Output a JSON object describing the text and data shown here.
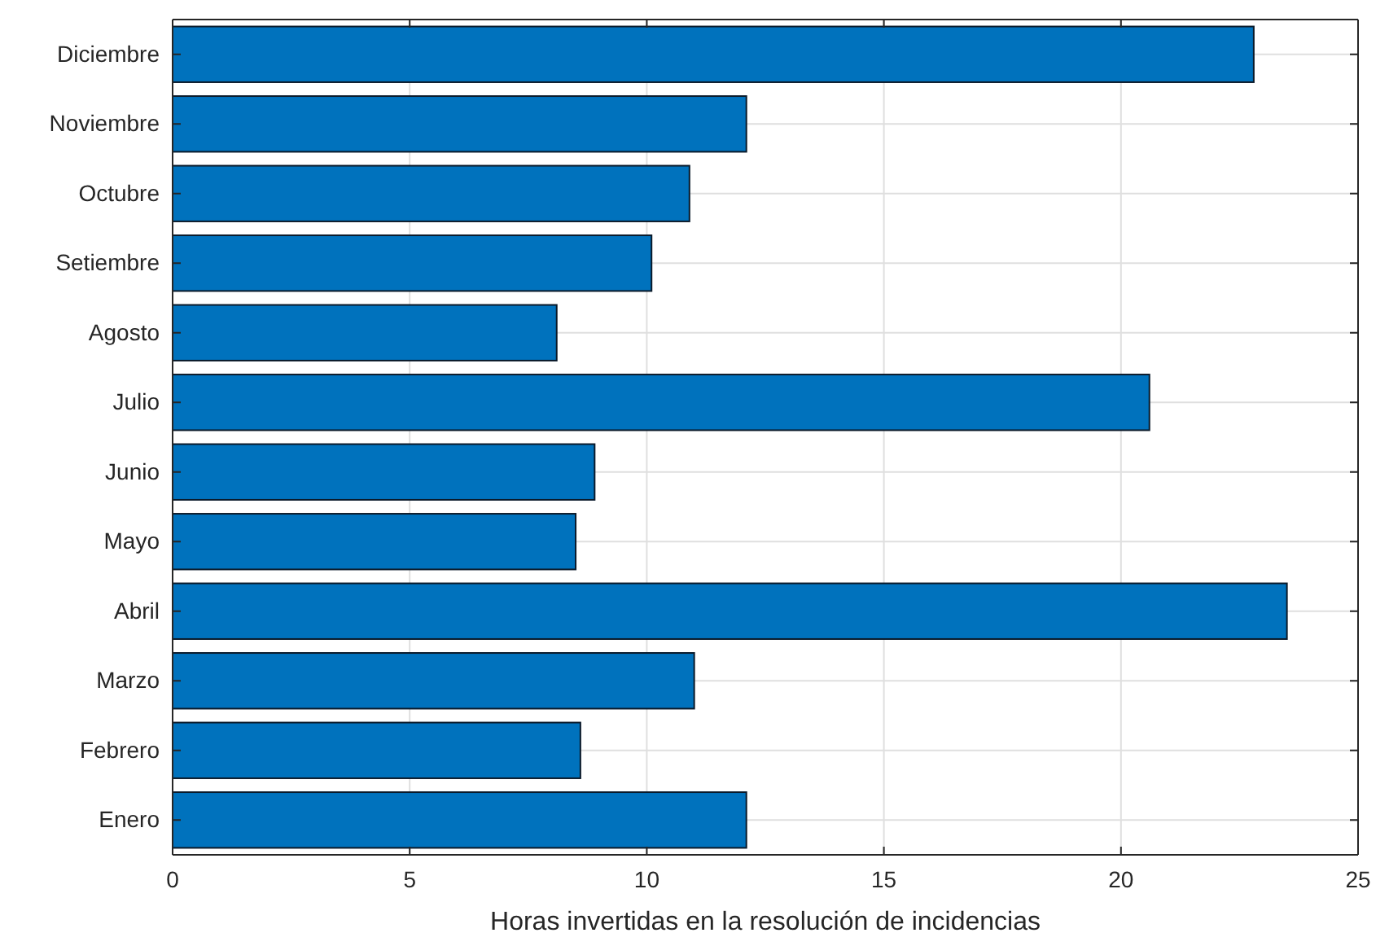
{
  "chart_data": {
    "type": "bar",
    "orientation": "horizontal",
    "categories": [
      "Diciembre",
      "Noviembre",
      "Octubre",
      "Setiembre",
      "Agosto",
      "Julio",
      "Junio",
      "Mayo",
      "Abril",
      "Marzo",
      "Febrero",
      "Enero"
    ],
    "values": [
      22.8,
      12.1,
      10.9,
      10.1,
      8.1,
      20.6,
      8.9,
      8.5,
      23.5,
      11.0,
      8.6,
      12.1
    ],
    "color": "#0072bd",
    "xlabel": "Horas invertidas en la resolución de incidencias",
    "xlim": [
      0,
      25
    ],
    "xticks": [
      0,
      5,
      10,
      15,
      20,
      25
    ],
    "grid": true
  }
}
